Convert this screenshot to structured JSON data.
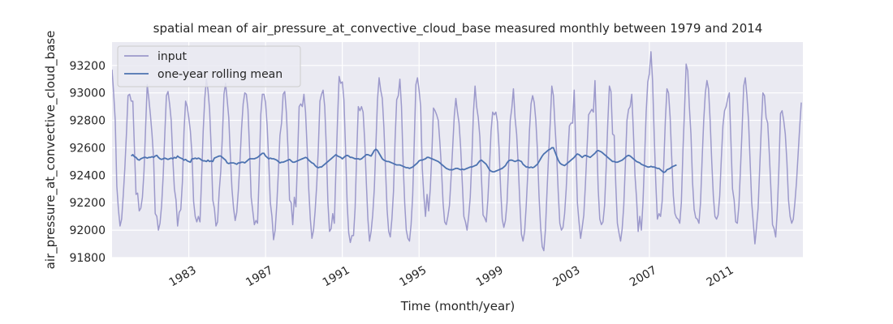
{
  "chart_data": {
    "type": "line",
    "title": "spatial mean of air_pressure_at_convective_cloud_base measured monthly between 1979 and 2014",
    "xlabel": "Time (month/year)",
    "ylabel": "air_pressure_at_convective_cloud_base",
    "xlim": [
      "1979-01",
      "2015-01"
    ],
    "ylim": [
      91800,
      93370
    ],
    "x_ticks": [
      "1983",
      "1987",
      "1991",
      "1995",
      "1999",
      "2003",
      "2007",
      "2011"
    ],
    "y_ticks": [
      91800,
      92000,
      92200,
      92400,
      92600,
      92800,
      93000,
      93200
    ],
    "grid": true,
    "legend": "top-left",
    "series": [
      {
        "name": "input",
        "color": "#9c99cb",
        "start": "1979-01",
        "frequency": "monthly",
        "values": [
          93170,
          93000,
          92800,
          92320,
          92150,
          92030,
          92080,
          92250,
          92450,
          92700,
          92980,
          92990,
          92940,
          92940,
          92600,
          92260,
          92270,
          92140,
          92160,
          92240,
          92430,
          92750,
          93060,
          92960,
          92840,
          92700,
          92520,
          92120,
          92100,
          92000,
          92050,
          92180,
          92400,
          92700,
          92980,
          93010,
          92920,
          92800,
          92520,
          92300,
          92220,
          92030,
          92130,
          92150,
          92350,
          92720,
          92940,
          92900,
          92820,
          92720,
          92550,
          92210,
          92100,
          92060,
          92100,
          92060,
          92380,
          92720,
          92960,
          93100,
          93020,
          92880,
          92600,
          92220,
          92160,
          92030,
          92060,
          92280,
          92430,
          92680,
          92990,
          93070,
          92950,
          92820,
          92540,
          92300,
          92160,
          92070,
          92130,
          92290,
          92500,
          92740,
          92920,
          93000,
          92990,
          92880,
          92590,
          92240,
          92140,
          92040,
          92070,
          92050,
          92400,
          92840,
          92990,
          92990,
          92930,
          92760,
          92500,
          92200,
          92100,
          91930,
          92000,
          92180,
          92420,
          92690,
          92780,
          92990,
          93010,
          92860,
          92600,
          92220,
          92200,
          92040,
          92240,
          92170,
          92520,
          92900,
          92920,
          92900,
          92990,
          92860,
          92600,
          92300,
          92080,
          91940,
          92000,
          92140,
          92330,
          92600,
          92940,
          92990,
          93020,
          92900,
          92600,
          92200,
          91990,
          92010,
          92120,
          92050,
          92440,
          92800,
          93120,
          93070,
          93080,
          92950,
          92600,
          92200,
          91980,
          91910,
          91960,
          91960,
          92160,
          92560,
          92900,
          92870,
          92900,
          92860,
          92650,
          92350,
          92080,
          91920,
          91990,
          92110,
          92300,
          92620,
          92950,
          93110,
          93020,
          92960,
          92750,
          92450,
          92150,
          91990,
          91950,
          92080,
          92280,
          92660,
          92950,
          92980,
          93100,
          92900,
          92500,
          92200,
          92000,
          91940,
          91920,
          92040,
          92250,
          92650,
          93060,
          93110,
          93020,
          92900,
          92450,
          92250,
          92100,
          92260,
          92140,
          92300,
          92560,
          92890,
          92870,
          92840,
          92800,
          92640,
          92450,
          92200,
          92060,
          92040,
          92100,
          92180,
          92380,
          92600,
          92830,
          92960,
          92860,
          92780,
          92600,
          92350,
          92100,
          92060,
          92000,
          92100,
          92240,
          92520,
          92860,
          93050,
          92900,
          92820,
          92680,
          92380,
          92110,
          92090,
          92060,
          92220,
          92450,
          92720,
          92860,
          92840,
          92860,
          92790,
          92600,
          92300,
          92080,
          92020,
          92070,
          92200,
          92480,
          92800,
          92890,
          93030,
          92820,
          92700,
          92480,
          92200,
          91970,
          91920,
          91990,
          92180,
          92420,
          92720,
          92920,
          92980,
          92930,
          92800,
          92580,
          92250,
          92020,
          91880,
          91850,
          92000,
          92280,
          92550,
          92780,
          93050,
          92980,
          92760,
          92560,
          92280,
          92050,
          92000,
          92020,
          92120,
          92300,
          92550,
          92760,
          92780,
          92780,
          93020,
          92600,
          92200,
          92060,
          91940,
          92020,
          92110,
          92330,
          92590,
          92840,
          92860,
          92880,
          92860,
          93090,
          92700,
          92300,
          92080,
          92040,
          92060,
          92180,
          92460,
          92780,
          93050,
          93010,
          92700,
          92690,
          92330,
          92050,
          91980,
          91920,
          92010,
          92180,
          92480,
          92800,
          92880,
          92900,
          92990,
          92720,
          92400,
          92230,
          91990,
          92100,
          92000,
          92200,
          92520,
          92860,
          93080,
          93140,
          93300,
          93090,
          92700,
          92350,
          92080,
          92120,
          92100,
          92210,
          92480,
          92800,
          93030,
          93000,
          92820,
          92520,
          92250,
          92120,
          92090,
          92080,
          92050,
          92200,
          92580,
          92880,
          93210,
          93160,
          92900,
          92700,
          92350,
          92150,
          92090,
          92080,
          92050,
          92200,
          92520,
          92800,
          93000,
          93090,
          93030,
          92800,
          92500,
          92250,
          92100,
          92080,
          92110,
          92250,
          92520,
          92760,
          92870,
          92900,
          92960,
          93000,
          92650,
          92300,
          92220,
          92060,
          92050,
          92180,
          92450,
          92740,
          93050,
          93110,
          92980,
          92800,
          92500,
          92200,
          92050,
          91900,
          92020,
          92160,
          92450,
          92750,
          93000,
          92980,
          92820,
          92780,
          92560,
          92300,
          92040,
          92010,
          91950,
          92140,
          92450,
          92850,
          92870,
          92800,
          92700,
          92500,
          92220,
          92100,
          92050,
          92080,
          92200,
          92350,
          92550,
          92750,
          92930
        ]
      },
      {
        "name": "one-year rolling mean",
        "color": "#4c72b0",
        "start": "1980-01",
        "frequency": "monthly",
        "values": [
          92540,
          92550,
          92535,
          92530,
          92515,
          92510,
          92520,
          92525,
          92530,
          92530,
          92525,
          92530,
          92530,
          92535,
          92530,
          92540,
          92545,
          92530,
          92520,
          92515,
          92520,
          92525,
          92520,
          92515,
          92520,
          92525,
          92520,
          92530,
          92525,
          92540,
          92530,
          92525,
          92520,
          92510,
          92515,
          92505,
          92500,
          92495,
          92520,
          92520,
          92525,
          92520,
          92525,
          92520,
          92510,
          92505,
          92505,
          92500,
          92510,
          92500,
          92505,
          92500,
          92525,
          92530,
          92535,
          92540,
          92540,
          92530,
          92520,
          92510,
          92490,
          92485,
          92490,
          92490,
          92490,
          92485,
          92480,
          92490,
          92490,
          92495,
          92495,
          92490,
          92500,
          92510,
          92520,
          92520,
          92520,
          92520,
          92525,
          92530,
          92540,
          92550,
          92560,
          92560,
          92540,
          92530,
          92520,
          92525,
          92520,
          92520,
          92515,
          92510,
          92500,
          92490,
          92495,
          92495,
          92500,
          92505,
          92510,
          92515,
          92505,
          92495,
          92495,
          92500,
          92505,
          92510,
          92515,
          92520,
          92525,
          92530,
          92525,
          92510,
          92500,
          92490,
          92485,
          92470,
          92460,
          92455,
          92460,
          92460,
          92470,
          92480,
          92490,
          92500,
          92510,
          92520,
          92530,
          92540,
          92550,
          92540,
          92535,
          92530,
          92520,
          92530,
          92540,
          92545,
          92540,
          92530,
          92530,
          92525,
          92520,
          92520,
          92520,
          92515,
          92520,
          92530,
          92540,
          92550,
          92550,
          92545,
          92540,
          92560,
          92580,
          92590,
          92580,
          92560,
          92540,
          92520,
          92510,
          92505,
          92500,
          92500,
          92495,
          92490,
          92485,
          92480,
          92475,
          92475,
          92475,
          92470,
          92465,
          92460,
          92455,
          92455,
          92450,
          92455,
          92460,
          92470,
          92480,
          92490,
          92505,
          92510,
          92510,
          92515,
          92520,
          92530,
          92530,
          92525,
          92520,
          92515,
          92510,
          92505,
          92500,
          92490,
          92480,
          92470,
          92460,
          92450,
          92445,
          92440,
          92440,
          92440,
          92445,
          92450,
          92450,
          92445,
          92440,
          92445,
          92440,
          92445,
          92450,
          92455,
          92460,
          92460,
          92465,
          92470,
          92475,
          92490,
          92505,
          92510,
          92500,
          92490,
          92480,
          92460,
          92440,
          92430,
          92425,
          92425,
          92430,
          92435,
          92440,
          92445,
          92450,
          92460,
          92470,
          92490,
          92505,
          92510,
          92510,
          92505,
          92500,
          92505,
          92510,
          92505,
          92500,
          92480,
          92470,
          92460,
          92460,
          92455,
          92460,
          92455,
          92460,
          92470,
          92480,
          92500,
          92520,
          92540,
          92555,
          92565,
          92575,
          92585,
          92590,
          92600,
          92600,
          92570,
          92540,
          92510,
          92490,
          92480,
          92475,
          92470,
          92480,
          92490,
          92500,
          92510,
          92520,
          92530,
          92545,
          92555,
          92550,
          92540,
          92530,
          92540,
          92545,
          92540,
          92535,
          92530,
          92540,
          92550,
          92560,
          92575,
          92580,
          92575,
          92570,
          92560,
          92550,
          92540,
          92530,
          92520,
          92510,
          92500,
          92500,
          92495,
          92495,
          92500,
          92505,
          92510,
          92520,
          92530,
          92540,
          92545,
          92540,
          92530,
          92520,
          92510,
          92500,
          92495,
          92490,
          92480,
          92475,
          92470,
          92465,
          92460,
          92460,
          92465,
          92460,
          92460,
          92455,
          92450,
          92450,
          92440,
          92430,
          92420,
          92425,
          92440,
          92445,
          92450,
          92460,
          92465,
          92470,
          92475
        ]
      }
    ]
  }
}
